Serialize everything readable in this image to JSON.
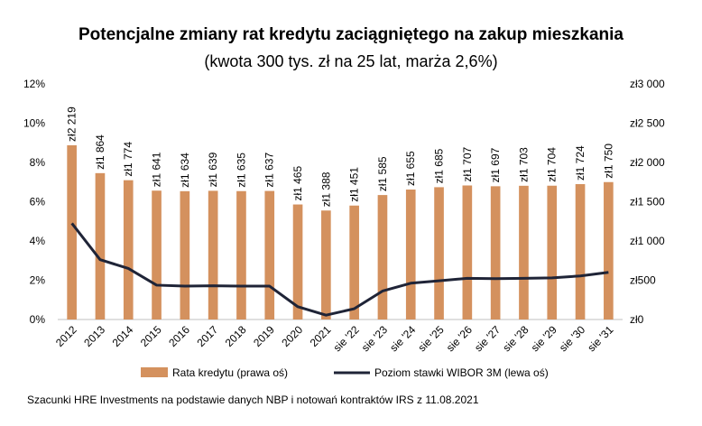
{
  "chart_data": {
    "type": "bar+line",
    "title": "Potencjalne zmiany rat kredytu zaciągniętego na zakup mieszkania",
    "subtitle": "(kwota 300 tys. zł na 25 lat, marża 2,6%)",
    "categories": [
      "2012",
      "2013",
      "2014",
      "2015",
      "2016",
      "2017",
      "2018",
      "2019",
      "2020",
      "2021",
      "sie '22",
      "sie '23",
      "sie '24",
      "sie '25",
      "sie '26",
      "sie '27",
      "sie '28",
      "sie '29",
      "sie '30",
      "sie '31"
    ],
    "series": [
      {
        "name": "Rata kredytu (prawa oś)",
        "type": "bar",
        "axis": "right",
        "color": "#D4915E",
        "values": [
          2219,
          1864,
          1774,
          1641,
          1634,
          1639,
          1635,
          1637,
          1465,
          1388,
          1451,
          1585,
          1655,
          1685,
          1707,
          1697,
          1703,
          1704,
          1724,
          1750
        ],
        "labels": [
          "zł2 219",
          "zł1 864",
          "zł1 774",
          "zł1 641",
          "zł1 634",
          "zł1 639",
          "zł1 635",
          "zł1 637",
          "zł1 465",
          "zł1 388",
          "zł1 451",
          "zł1 585",
          "zł1 655",
          "zł1 685",
          "zł1 707",
          "zł1 697",
          "zł1 703",
          "zł1 704",
          "zł1 724",
          "zł1 750"
        ]
      },
      {
        "name": "Poziom stawki WIBOR 3M (lewa oś)",
        "type": "line",
        "axis": "left",
        "color": "#1F2437",
        "values": [
          4.9,
          3.05,
          2.6,
          1.75,
          1.7,
          1.72,
          1.7,
          1.7,
          0.65,
          0.22,
          0.55,
          1.45,
          1.85,
          1.97,
          2.1,
          2.08,
          2.1,
          2.12,
          2.22,
          2.4
        ]
      }
    ],
    "left_axis": {
      "min": 0,
      "max": 12,
      "ticks": [
        0,
        2,
        4,
        6,
        8,
        10,
        12
      ],
      "labels": [
        "0%",
        "2%",
        "4%",
        "6%",
        "8%",
        "10%",
        "12%"
      ]
    },
    "right_axis": {
      "min": 0,
      "max": 3000,
      "ticks": [
        0,
        500,
        1000,
        1500,
        2000,
        2500,
        3000
      ],
      "labels": [
        "zł0",
        "zł500",
        "zł1 000",
        "zł1 500",
        "zł2 000",
        "zł2 500",
        "zł3 000"
      ]
    },
    "grid": false,
    "legend": "bottom",
    "source": "Szacunki HRE Investments na podstawie danych NBP i notowań kontraktów IRS z 11.08.2021"
  }
}
